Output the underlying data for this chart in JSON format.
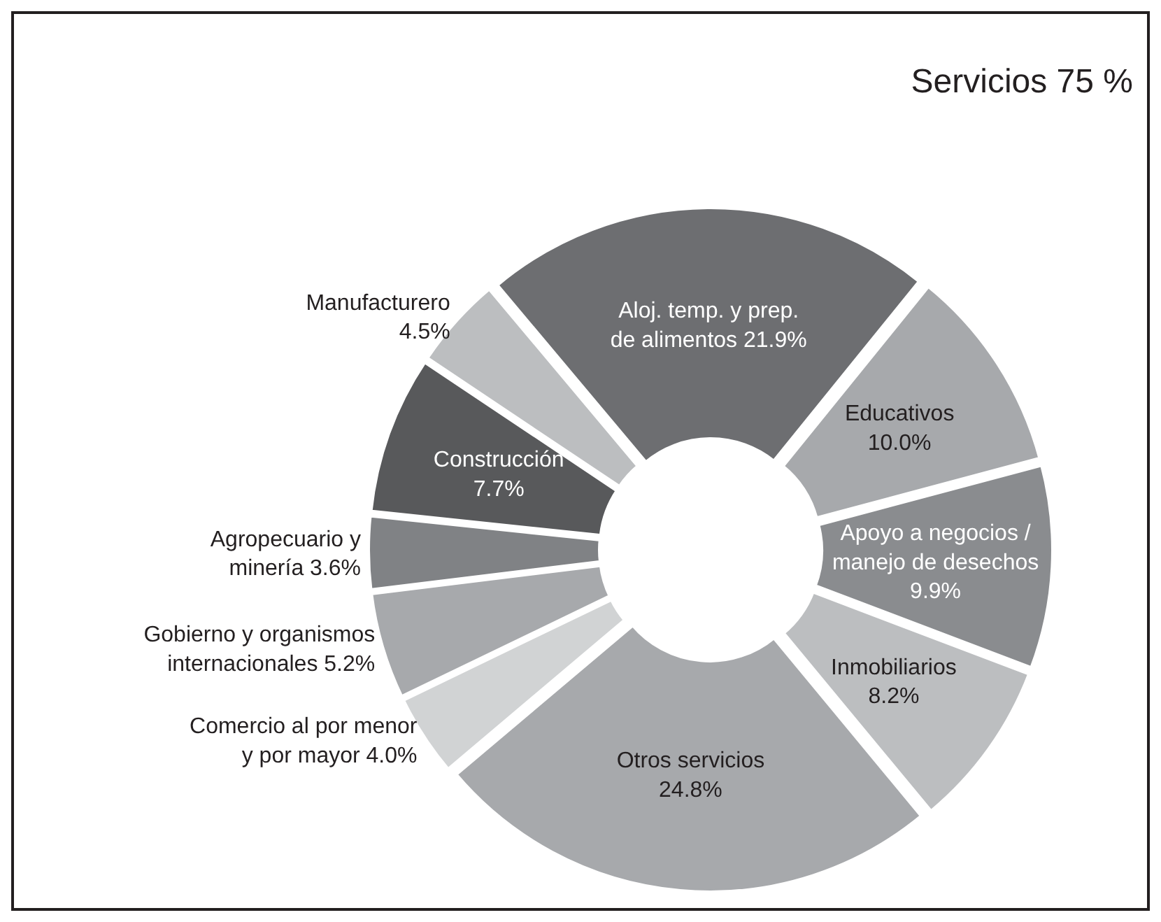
{
  "chart_data": {
    "type": "donut",
    "categories": [
      "Aloj. temp. y prep.\nde alimentos",
      "Educativos",
      "Apoyo a negocios /\nmanejo de desechos",
      "Inmobiliarios",
      "Otros servicios",
      "Comercio al por menor\ny por mayor",
      "Gobierno y organismos\ninternacionales",
      "Agropecuario y\nminería",
      "Construcción",
      "Manufacturero"
    ],
    "values": [
      21.9,
      10.0,
      9.9,
      8.2,
      24.8,
      4.0,
      5.2,
      3.6,
      7.7,
      4.5
    ],
    "value_labels": [
      "21.9%",
      "10.0%",
      "9.9%",
      "8.2%",
      "24.8%",
      "4.0%",
      "5.2%",
      "3.6%",
      "7.7%",
      "4.5%"
    ],
    "colors": [
      "#6d6e71",
      "#a7a9ac",
      "#8a8c8f",
      "#bcbec0",
      "#a7a9ac",
      "#d1d3d4",
      "#a7a9ac",
      "#808285",
      "#58595b",
      "#bcbec0"
    ],
    "annotations": [
      "Servicios 75 %"
    ]
  }
}
